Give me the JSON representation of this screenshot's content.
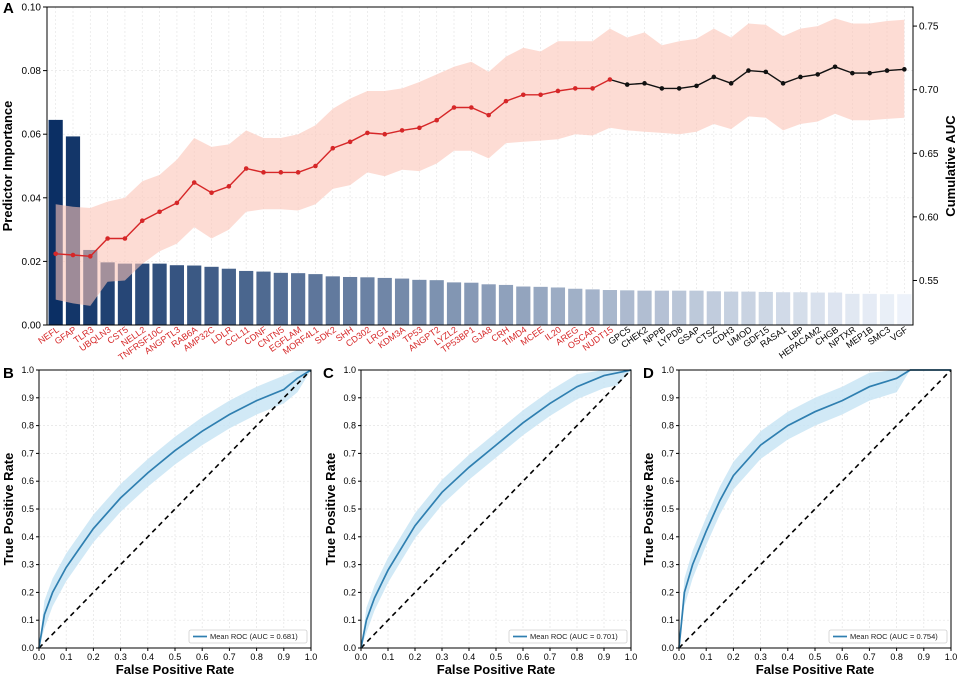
{
  "chart_data": [
    {
      "panel": "A",
      "type": "bar",
      "title": "",
      "ylabel": "Predictor Importance",
      "y2label": "Cumulative AUC",
      "ylim": [
        0,
        0.1
      ],
      "yticks": [
        "0.00",
        "0.02",
        "0.04",
        "0.06",
        "0.08",
        "0.10"
      ],
      "y2lim": [
        0.515,
        0.765
      ],
      "y2ticks": [
        "0.55",
        "0.60",
        "0.65",
        "0.70",
        "0.75"
      ],
      "y2tick_values": [
        0.55,
        0.6,
        0.65,
        0.7,
        0.75
      ],
      "colors": {
        "bar_dark": "#0b2f64",
        "bar_light": "#edf2fa",
        "line_red": "#d62728",
        "line_black": "#111111",
        "band": "#fbc4b8",
        "label_red": "#d62728",
        "label_black": "#000000"
      },
      "categories": [
        "NEFL",
        "GFAP",
        "TLR3",
        "UBQLN3",
        "CST5",
        "NELL2",
        "TNFRSF10C",
        "ANGPTL3",
        "RAB6A",
        "AMP32C",
        "LDLR",
        "CCL11",
        "CDNF",
        "CNTN5",
        "EGFLAM",
        "MORF4L1",
        "SDK2",
        "SHH",
        "CD302",
        "LRG1",
        "KDM3A",
        "TP53",
        "ANGPT2",
        "LYZL2",
        "TP53BP1",
        "GJA8",
        "CRH",
        "TIMD4",
        "MCEE",
        "IL20",
        "AREG",
        "OSCAR",
        "NUDT15",
        "GPC5",
        "CHEK2",
        "NPPB",
        "LYPD8",
        "GSAP",
        "CTSZ",
        "CDH3",
        "UMOD",
        "GDF15",
        "RASA1",
        "LBP",
        "HEPACAM2",
        "CHGB",
        "NPTXR",
        "MEP1B",
        "SMC3",
        "VGF"
      ],
      "values": [
        0.0645,
        0.0593,
        0.0236,
        0.0197,
        0.0193,
        0.0193,
        0.0193,
        0.0188,
        0.0187,
        0.0183,
        0.0177,
        0.017,
        0.0168,
        0.0164,
        0.0163,
        0.016,
        0.0153,
        0.0151,
        0.015,
        0.0148,
        0.0146,
        0.0142,
        0.0141,
        0.0134,
        0.0133,
        0.0128,
        0.0126,
        0.0121,
        0.012,
        0.0118,
        0.0114,
        0.0112,
        0.011,
        0.0109,
        0.0108,
        0.0108,
        0.0108,
        0.0108,
        0.0106,
        0.0105,
        0.0105,
        0.0104,
        0.0103,
        0.0103,
        0.0102,
        0.0102,
        0.0098,
        0.0098,
        0.0097,
        0.0097
      ],
      "red_label_count": 33,
      "series": [
        {
          "name": "Cumulative AUC",
          "values": [
            0.571,
            0.57,
            0.569,
            0.583,
            0.583,
            0.597,
            0.604,
            0.611,
            0.627,
            0.619,
            0.624,
            0.638,
            0.635,
            0.635,
            0.635,
            0.64,
            0.654,
            0.659,
            0.666,
            0.665,
            0.668,
            0.67,
            0.676,
            0.686,
            0.686,
            0.68,
            0.691,
            0.696,
            0.696,
            0.699,
            0.701,
            0.701,
            0.708,
            0.704,
            0.705,
            0.701,
            0.701,
            0.703,
            0.71,
            0.705,
            0.715,
            0.714,
            0.705,
            0.71,
            0.712,
            0.718,
            0.713,
            0.713,
            0.715,
            0.716
          ],
          "upper": [
            0.61,
            0.608,
            0.607,
            0.612,
            0.615,
            0.628,
            0.633,
            0.645,
            0.662,
            0.655,
            0.657,
            0.668,
            0.662,
            0.662,
            0.665,
            0.672,
            0.685,
            0.693,
            0.699,
            0.699,
            0.701,
            0.706,
            0.712,
            0.718,
            0.722,
            0.714,
            0.726,
            0.733,
            0.73,
            0.738,
            0.738,
            0.738,
            0.748,
            0.741,
            0.745,
            0.735,
            0.738,
            0.74,
            0.748,
            0.741,
            0.752,
            0.751,
            0.742,
            0.748,
            0.75,
            0.756,
            0.752,
            0.752,
            0.754,
            0.755
          ],
          "lower": [
            0.535,
            0.532,
            0.53,
            0.549,
            0.55,
            0.563,
            0.573,
            0.579,
            0.592,
            0.583,
            0.59,
            0.604,
            0.606,
            0.606,
            0.605,
            0.61,
            0.622,
            0.625,
            0.635,
            0.632,
            0.637,
            0.636,
            0.642,
            0.652,
            0.652,
            0.646,
            0.658,
            0.659,
            0.66,
            0.661,
            0.665,
            0.664,
            0.67,
            0.668,
            0.667,
            0.666,
            0.665,
            0.667,
            0.673,
            0.669,
            0.679,
            0.678,
            0.668,
            0.673,
            0.675,
            0.681,
            0.676,
            0.676,
            0.677,
            0.678
          ]
        }
      ]
    },
    {
      "panel": "B",
      "type": "line",
      "xlabel": "False Positive Rate",
      "ylabel": "True Positive Rate",
      "xlim": [
        0,
        1
      ],
      "ylim": [
        0,
        1
      ],
      "ticks": [
        "0.0",
        "0.1",
        "0.2",
        "0.3",
        "0.4",
        "0.5",
        "0.6",
        "0.7",
        "0.8",
        "0.9",
        "1.0"
      ],
      "legend": "Mean ROC (AUC = 0.681)",
      "legend_position": "lower-right",
      "colors": {
        "line": "#2f7fb0",
        "band": "#c6e3f4",
        "chance": "#000000"
      },
      "series": [
        {
          "name": "Mean ROC",
          "x": [
            0,
            0.02,
            0.05,
            0.1,
            0.15,
            0.2,
            0.3,
            0.4,
            0.5,
            0.6,
            0.7,
            0.8,
            0.9,
            0.95,
            1.0
          ],
          "y": [
            0,
            0.12,
            0.2,
            0.29,
            0.36,
            0.43,
            0.54,
            0.63,
            0.71,
            0.78,
            0.84,
            0.89,
            0.93,
            0.97,
            1.0
          ],
          "band": 0.05
        }
      ]
    },
    {
      "panel": "C",
      "type": "line",
      "xlabel": "False Positive Rate",
      "ylabel": "True Positive Rate",
      "xlim": [
        0,
        1
      ],
      "ylim": [
        0,
        1
      ],
      "ticks": [
        "0.0",
        "0.1",
        "0.2",
        "0.3",
        "0.4",
        "0.5",
        "0.6",
        "0.7",
        "0.8",
        "0.9",
        "1.0"
      ],
      "legend": "Mean ROC (AUC = 0.701)",
      "legend_position": "lower-right",
      "colors": {
        "line": "#2f7fb0",
        "band": "#c6e3f4",
        "chance": "#000000"
      },
      "series": [
        {
          "name": "Mean ROC",
          "x": [
            0,
            0.02,
            0.05,
            0.1,
            0.15,
            0.2,
            0.3,
            0.4,
            0.5,
            0.6,
            0.7,
            0.8,
            0.9,
            0.95,
            1.0
          ],
          "y": [
            0,
            0.1,
            0.18,
            0.28,
            0.36,
            0.44,
            0.56,
            0.65,
            0.73,
            0.81,
            0.88,
            0.94,
            0.98,
            0.99,
            1.0
          ],
          "band": 0.045
        }
      ]
    },
    {
      "panel": "D",
      "type": "line",
      "xlabel": "False Positive Rate",
      "ylabel": "True Positive Rate",
      "xlim": [
        0,
        1
      ],
      "ylim": [
        0,
        1
      ],
      "ticks": [
        "0.0",
        "0.1",
        "0.2",
        "0.3",
        "0.4",
        "0.5",
        "0.6",
        "0.7",
        "0.8",
        "0.9",
        "1.0"
      ],
      "legend": "Mean ROC (AUC = 0.754)",
      "legend_position": "lower-right",
      "colors": {
        "line": "#2f7fb0",
        "band": "#c6e3f4",
        "chance": "#000000"
      },
      "series": [
        {
          "name": "Mean ROC",
          "x": [
            0,
            0.02,
            0.05,
            0.1,
            0.15,
            0.2,
            0.3,
            0.4,
            0.5,
            0.6,
            0.7,
            0.8,
            0.85,
            0.9,
            1.0
          ],
          "y": [
            0,
            0.2,
            0.3,
            0.42,
            0.53,
            0.62,
            0.73,
            0.8,
            0.85,
            0.89,
            0.94,
            0.97,
            1.0,
            1.0,
            1.0
          ],
          "band": 0.05
        }
      ]
    }
  ]
}
